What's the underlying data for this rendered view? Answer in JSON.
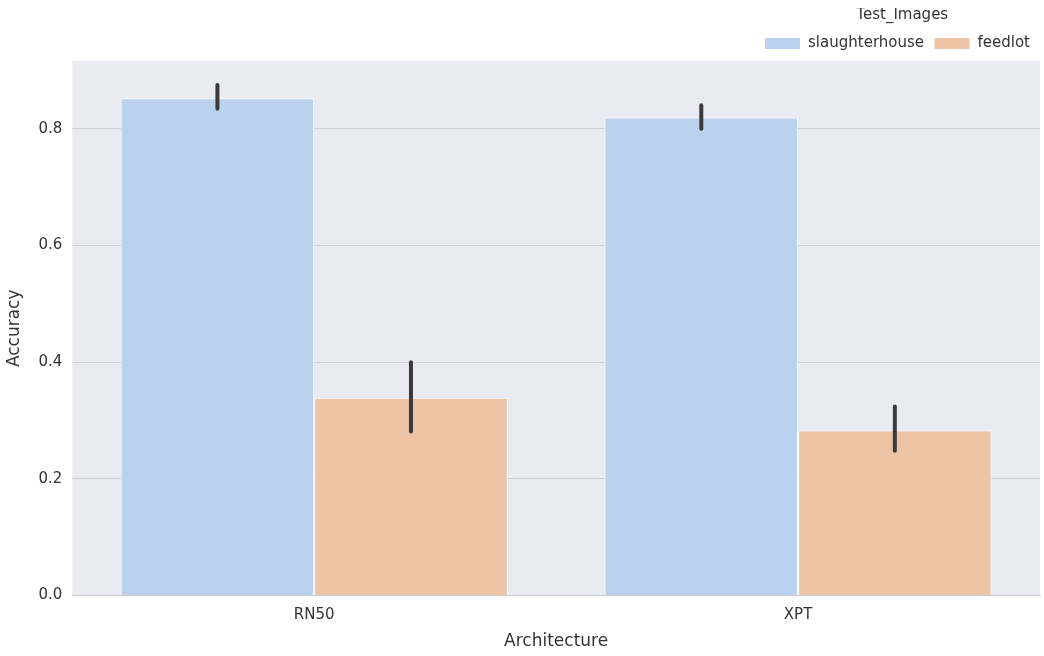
{
  "chart_data": {
    "type": "bar",
    "xlabel": "Architecture",
    "ylabel": "Accuracy",
    "legend_title": "Test_Images",
    "categories": [
      "RN50",
      "XPT"
    ],
    "series": [
      {
        "name": "slaughterhouse",
        "color": "#bbd2ee",
        "values": [
          0.852,
          0.819
        ],
        "errors": [
          [
            0.834,
            0.875
          ],
          [
            0.8,
            0.84
          ]
        ]
      },
      {
        "name": "feedlot",
        "color": "#eec4a6",
        "values": [
          0.339,
          0.283
        ],
        "errors": [
          [
            0.281,
            0.4
          ],
          [
            0.248,
            0.324
          ]
        ]
      }
    ],
    "ylim": [
      0,
      0.916
    ],
    "yticks": [
      {
        "value": 0,
        "label": "0.0"
      },
      {
        "value": 0.2,
        "label": "0.2"
      },
      {
        "value": 0.4,
        "label": "0.4"
      },
      {
        "value": 0.6,
        "label": "0.6"
      },
      {
        "value": 0.8,
        "label": "0.8"
      }
    ],
    "grid": "y",
    "legend": "top right"
  }
}
